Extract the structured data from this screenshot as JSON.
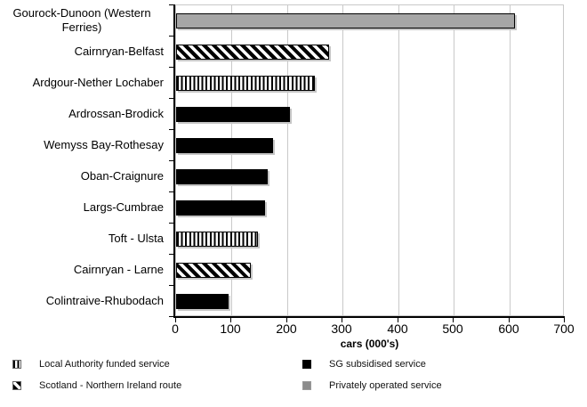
{
  "chart_data": {
    "type": "bar",
    "orientation": "horizontal",
    "title": "",
    "xlabel": "cars (000's)",
    "ylabel": "",
    "xlim": [
      0,
      700
    ],
    "xticks": [
      0,
      100,
      200,
      300,
      400,
      500,
      600,
      700
    ],
    "grid": "vertical-only",
    "legend_position": "bottom",
    "categories": [
      "Gourock-Dunoon (Western Ferries)",
      "Cairnryan-Belfast",
      "Ardgour-Nether Lochaber",
      "Ardrossan-Brodick",
      "Wemyss Bay-Rothesay",
      "Oban-Craignure",
      "Largs-Cumbrae",
      "Toft - Ulsta",
      "Cairnryan - Larne",
      "Colintraive-Rhubodach"
    ],
    "values": [
      610,
      275,
      250,
      205,
      175,
      165,
      160,
      148,
      135,
      95
    ],
    "bar_styles": [
      "gray",
      "diag",
      "vstripe",
      "solid",
      "solid",
      "solid",
      "solid",
      "vstripe",
      "diag",
      "solid"
    ],
    "legend": [
      {
        "label": "Local Authority funded service",
        "style": "vstripe",
        "column": "left"
      },
      {
        "label": "Scotland - Northern Ireland route",
        "style": "diag",
        "column": "left"
      },
      {
        "label": "SG subsidised service",
        "style": "solid",
        "column": "right"
      },
      {
        "label": "Privately operated service",
        "style": "gray",
        "column": "right"
      }
    ]
  },
  "colors": {
    "bar_gray": "#a6a6a6",
    "legend_gray": "#8c8c8c",
    "grid": "#c9c9c9",
    "axis": "#000000",
    "bar_shadow": "#c6c6c6"
  }
}
